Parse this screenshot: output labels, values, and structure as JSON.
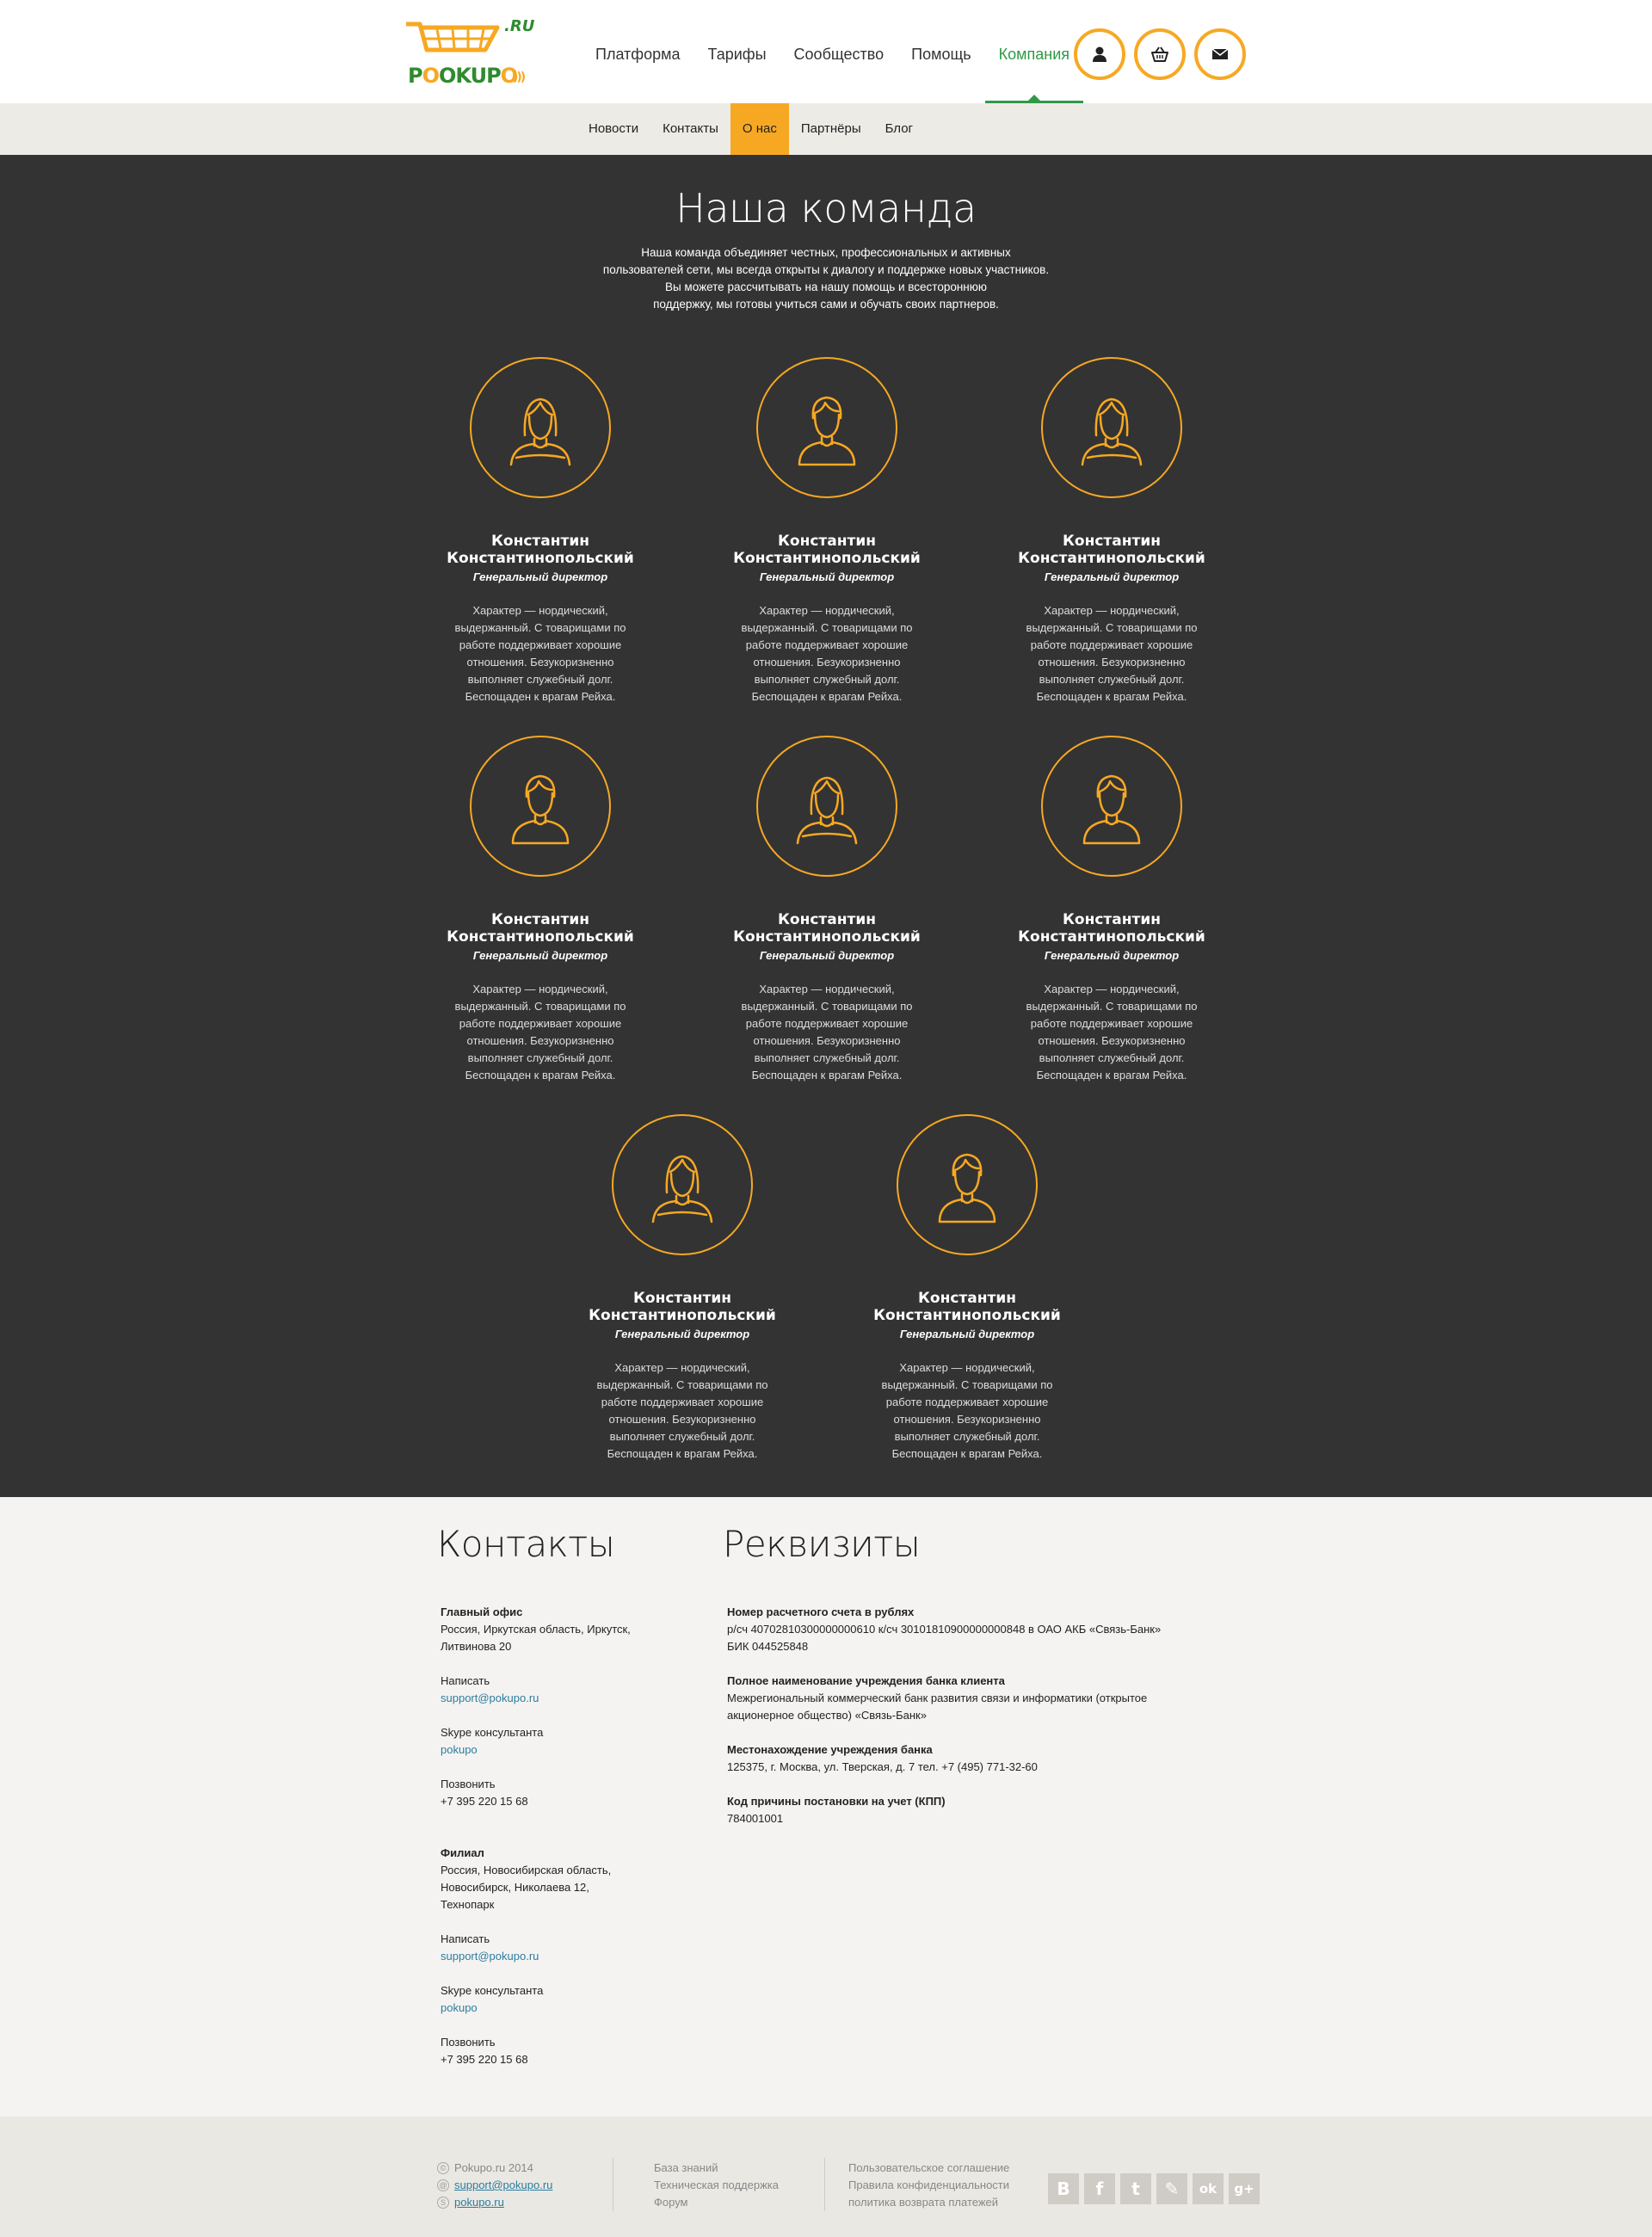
{
  "header": {
    "logo": {
      "text_prefix": "P",
      "text_main": "OKUP",
      "text_o": "O",
      "ru": ".RU",
      "waves": ")))"
    },
    "nav": [
      {
        "label": "Платформа"
      },
      {
        "label": "Тарифы"
      },
      {
        "label": "Сообщество"
      },
      {
        "label": "Помощь"
      },
      {
        "label": "Компания",
        "active": true
      }
    ],
    "icons": [
      "user-icon",
      "basket-icon",
      "mail-icon"
    ]
  },
  "subnav": [
    {
      "label": "Новости"
    },
    {
      "label": "Контакты"
    },
    {
      "label": "О нас",
      "active": true
    },
    {
      "label": "Партнёры"
    },
    {
      "label": "Блог"
    }
  ],
  "team": {
    "title": "Наша команда",
    "intro": [
      "Наша команда объединяет честных, профессиональных и активных",
      "пользователей сети, мы всегда открыты к диалогу и поддержке новых участников.",
      "Вы можете рассчитывать на нашу помощь и всестороннюю",
      "поддержку, мы готовы учиться сами и обучать своих партнеров."
    ],
    "members": [
      {
        "gender": "female",
        "first": "Константин",
        "last": "Константинопольский",
        "role": "Генеральный директор",
        "desc": "Характер — нордический, выдержанный. С товарищами по работе поддерживает хорошие отношения. Безукоризненно выполняет служебный долг. Беспощаден к врагам Рейха."
      },
      {
        "gender": "male",
        "first": "Константин",
        "last": "Константинопольский",
        "role": "Генеральный директор",
        "desc": "Характер — нордический, выдержанный. С товарищами по работе поддерживает хорошие отношения. Безукоризненно выполняет служебный долг. Беспощаден к врагам Рейха."
      },
      {
        "gender": "female",
        "first": "Константин",
        "last": "Константинопольский",
        "role": "Генеральный директор",
        "desc": "Характер — нордический, выдержанный. С товарищами по работе поддерживает хорошие отношения. Безукоризненно выполняет служебный долг. Беспощаден к врагам Рейха."
      },
      {
        "gender": "male",
        "first": "Константин",
        "last": "Константинопольский",
        "role": "Генеральный директор",
        "desc": "Характер — нордический, выдержанный. С товарищами по работе поддерживает хорошие отношения. Безукоризненно выполняет служебный долг. Беспощаден к врагам Рейха."
      },
      {
        "gender": "female",
        "first": "Константин",
        "last": "Константинопольский",
        "role": "Генеральный директор",
        "desc": "Характер — нордический, выдержанный. С товарищами по работе поддерживает хорошие отношения. Безукоризненно выполняет служебный долг. Беспощаден к врагам Рейха."
      },
      {
        "gender": "male",
        "first": "Константин",
        "last": "Константинопольский",
        "role": "Генеральный директор",
        "desc": "Характер — нордический, выдержанный. С товарищами по работе поддерживает хорошие отношения. Безукоризненно выполняет служебный долг. Беспощаден к врагам Рейха."
      },
      {
        "gender": "female",
        "first": "Константин",
        "last": "Константинопольский",
        "role": "Генеральный директор",
        "desc": "Характер — нордический, выдержанный. С товарищами по работе поддерживает хорошие отношения. Безукоризненно выполняет служебный долг. Беспощаден к врагам Рейха."
      },
      {
        "gender": "male",
        "first": "Константин",
        "last": "Константинопольский",
        "role": "Генеральный директор",
        "desc": "Характер — нордический, выдержанный. С товарищами по работе поддерживает хорошие отношения. Безукоризненно выполняет служебный долг. Беспощаден к врагам Рейха."
      }
    ]
  },
  "contacts": {
    "title": "Контакты",
    "offices": [
      {
        "name": "Главный офис",
        "address": [
          "Россия, Иркутская область, Иркутск,",
          "Литвинова 20"
        ],
        "write_label": "Написать",
        "email": "support@pokupo.ru",
        "skype_label": "Skype консультанта",
        "skype": "pokupo",
        "call_label": "Позвонить",
        "phone": "+7 395 220 15 68"
      },
      {
        "name": "Филиал",
        "address": [
          "Россия, Новосибирская область,",
          "Новосибирск, Николаева 12,",
          "Технопарк"
        ],
        "write_label": "Написать",
        "email": "support@pokupo.ru",
        "skype_label": "Skype консультанта",
        "skype": "pokupo",
        "call_label": "Позвонить",
        "phone": "+7 395 220 15 68"
      }
    ]
  },
  "requisites": {
    "title": "Реквизиты",
    "items": [
      {
        "label": "Номер расчетного счета в рублях",
        "lines": [
          "р/сч 40702810300000000610 к/сч 30101810900000000848 в ОАО АКБ «Связь-Банк»",
          "БИК 044525848"
        ]
      },
      {
        "label": "Полное наименование учреждения банка клиента",
        "lines": [
          "Межрегиональный коммерческий банк развития связи и информатики (открытое",
          "акционерное общество) «Связь-Банк»"
        ]
      },
      {
        "label": "Местонахождение учреждения банка",
        "lines": [
          "125375, г. Москва, ул. Тверская, д. 7 тел. +7 (495) 771-32-60"
        ]
      },
      {
        "label": "Код причины постановки на учет (КПП)",
        "lines": [
          "784001001"
        ]
      }
    ]
  },
  "footer": {
    "copyright": "Pokupo.ru 2014",
    "email": "support@pokupo.ru",
    "skype": "pokupo.ru",
    "links1": [
      "База знаний",
      "Техническая поддержка",
      "Форум"
    ],
    "links2": [
      "Пользовательское соглашение",
      "Правила конфиденциальности",
      "политика возврата платежей"
    ],
    "social": [
      {
        "icon": "vk-icon",
        "glyph": "B"
      },
      {
        "icon": "facebook-icon",
        "glyph": "f"
      },
      {
        "icon": "twitter-icon",
        "glyph": "t"
      },
      {
        "icon": "livejournal-icon",
        "glyph": "✎"
      },
      {
        "icon": "odnoklassniki-icon",
        "glyph": "ok"
      },
      {
        "icon": "googleplus-icon",
        "glyph": "g+"
      }
    ]
  },
  "colors": {
    "accent": "#f7a823",
    "green": "#2e9a45",
    "dark_bg": "#333333",
    "link": "#2c7da0"
  }
}
